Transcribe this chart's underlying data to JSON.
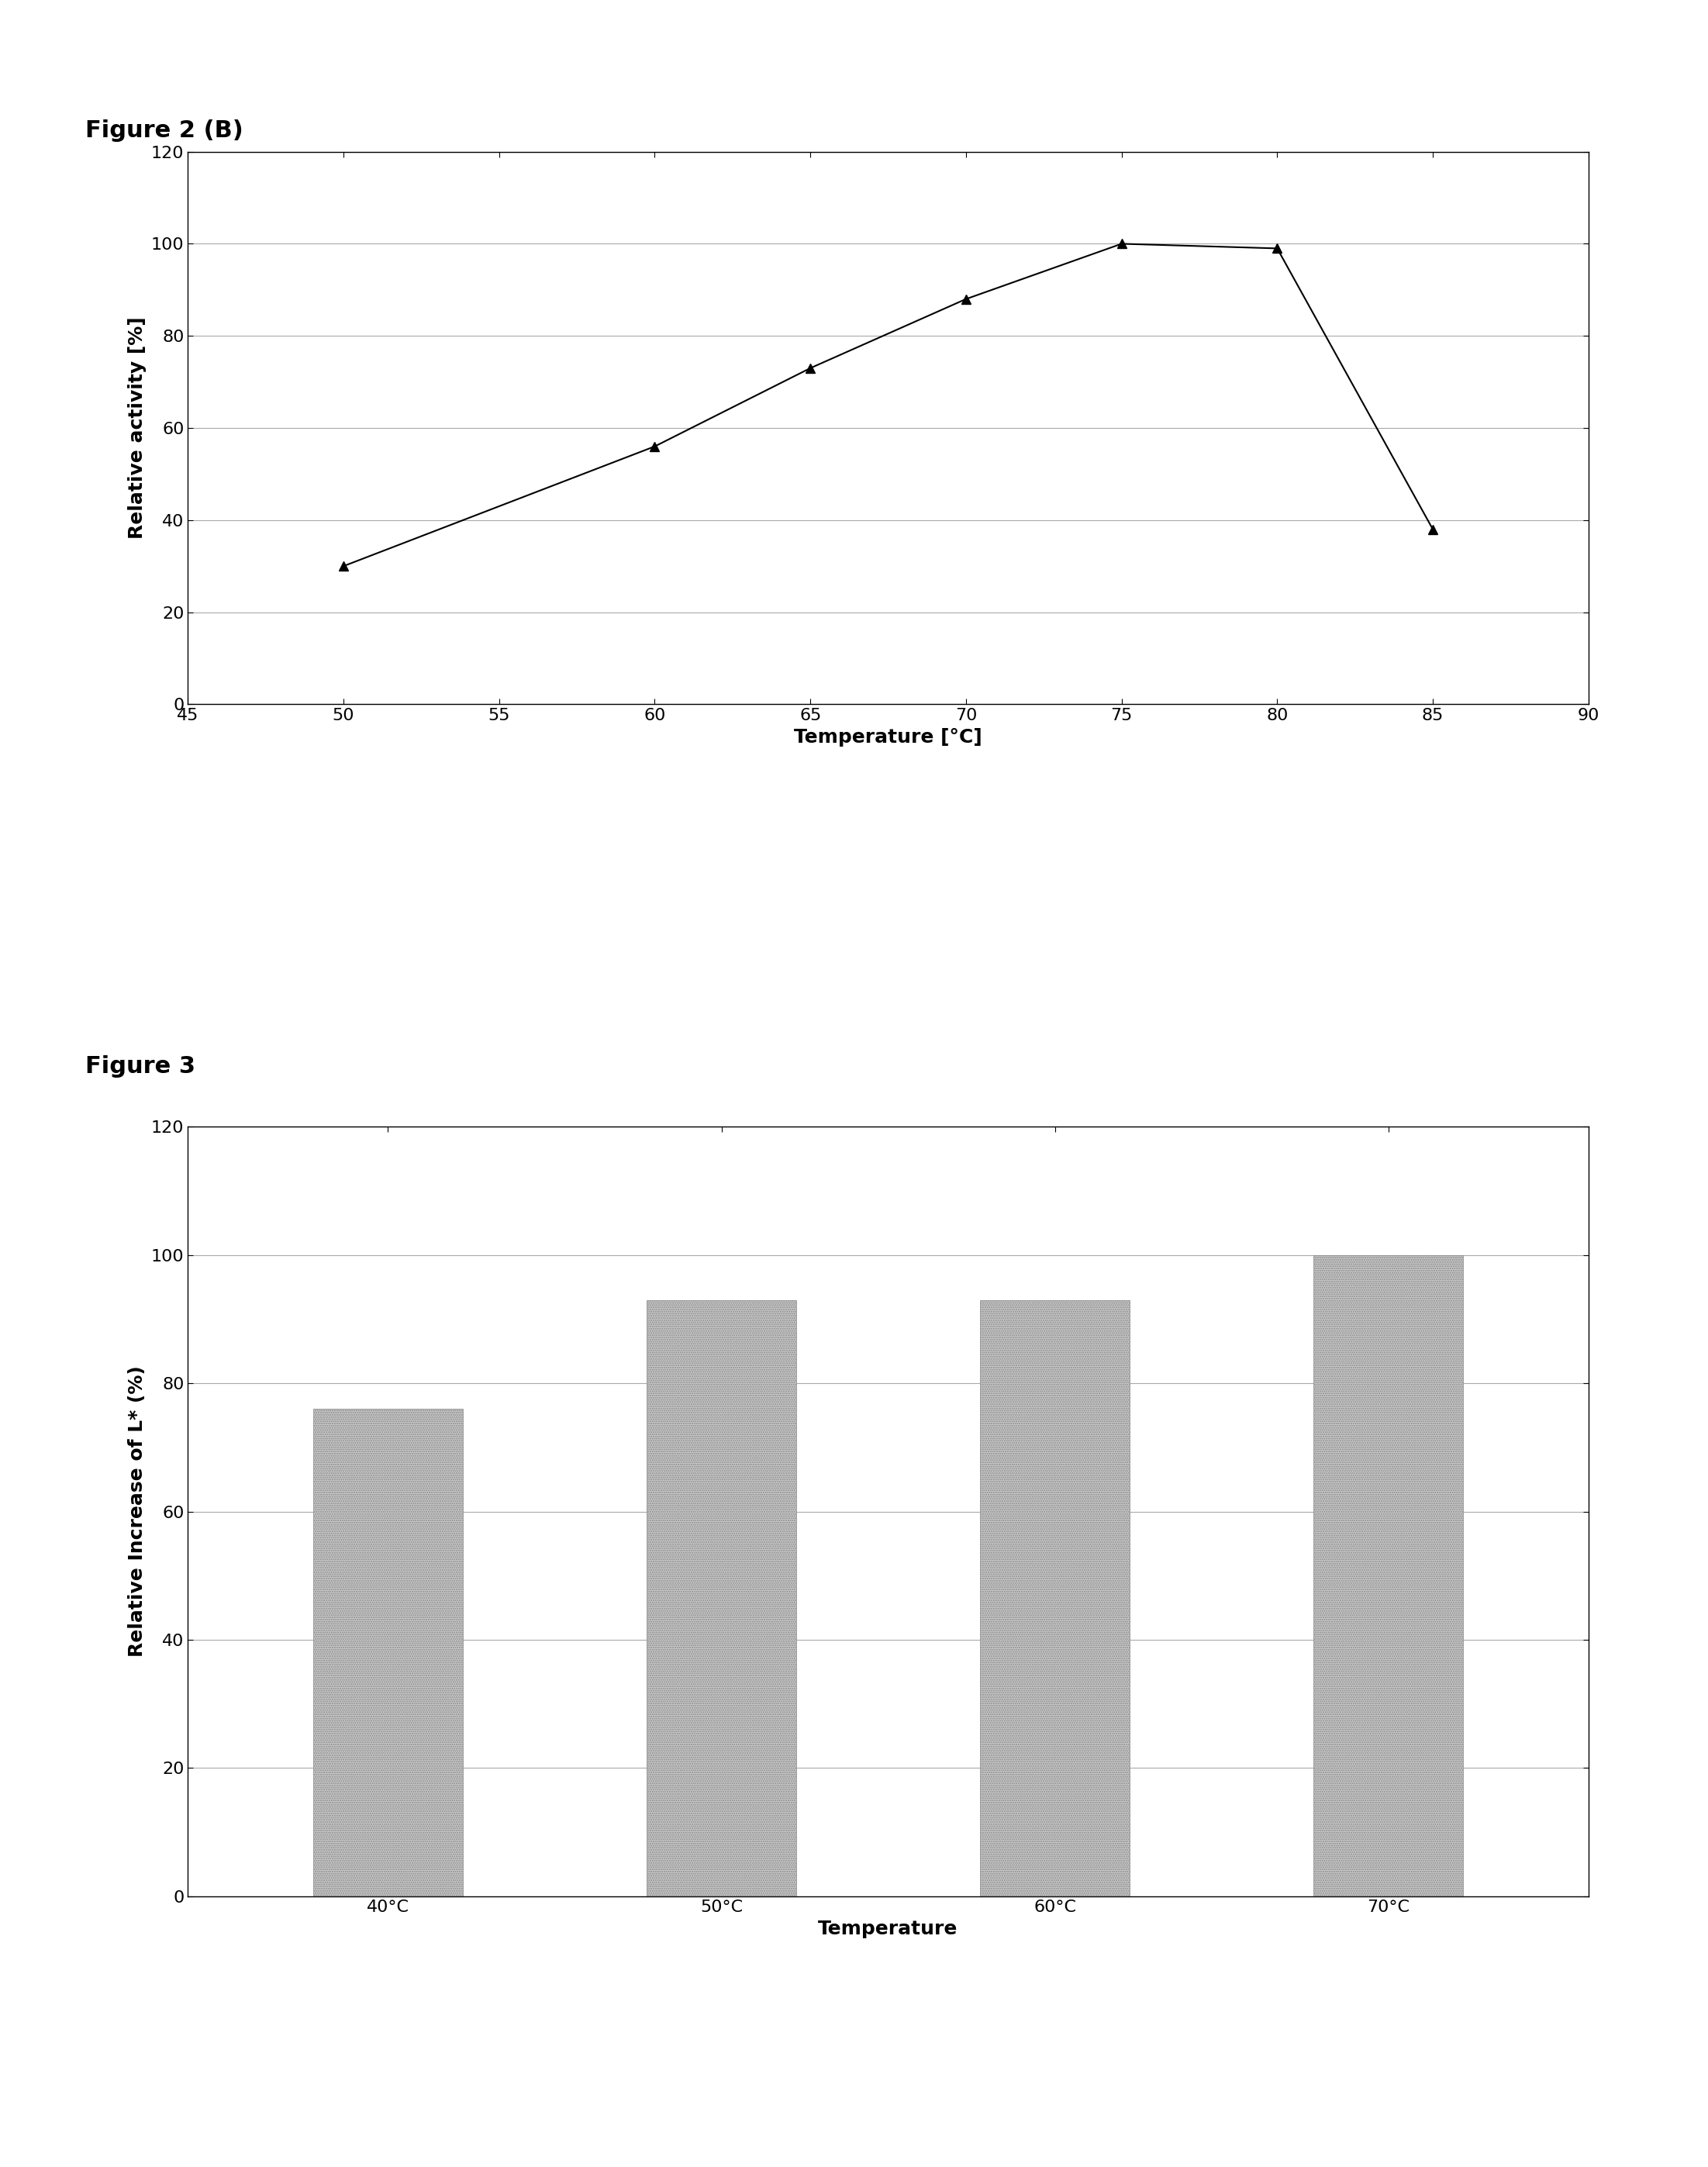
{
  "fig2b_title": "Figure 2 (B)",
  "fig2b_x": [
    50,
    60,
    65,
    70,
    75,
    80,
    85
  ],
  "fig2b_y": [
    30,
    56,
    73,
    88,
    100,
    99,
    38
  ],
  "fig2b_xlabel": "Temperature [°C]",
  "fig2b_ylabel": "Relative activity [%]",
  "fig2b_xlim": [
    45,
    90
  ],
  "fig2b_ylim": [
    0,
    120
  ],
  "fig2b_xticks": [
    45,
    50,
    55,
    60,
    65,
    70,
    75,
    80,
    85,
    90
  ],
  "fig2b_yticks": [
    0,
    20,
    40,
    60,
    80,
    100,
    120
  ],
  "fig3_title": "Figure 3",
  "fig3_categories": [
    "40°C",
    "50°C",
    "60°C",
    "70°C"
  ],
  "fig3_values": [
    76,
    93,
    93,
    100
  ],
  "fig3_xlabel": "Temperature",
  "fig3_ylabel": "Relative Increase of L* (%)",
  "fig3_ylim": [
    0,
    120
  ],
  "fig3_yticks": [
    0,
    20,
    40,
    60,
    80,
    100,
    120
  ],
  "bar_color": "#c8c8c8",
  "background_color": "#ffffff",
  "plot_bg_color": "#ffffff",
  "grid_color": "#aaaaaa",
  "line_color": "#000000",
  "marker": "^",
  "marker_size": 8,
  "marker_color": "#000000",
  "title_fontsize": 22,
  "label_fontsize": 18,
  "tick_fontsize": 16,
  "bar_width": 0.45
}
